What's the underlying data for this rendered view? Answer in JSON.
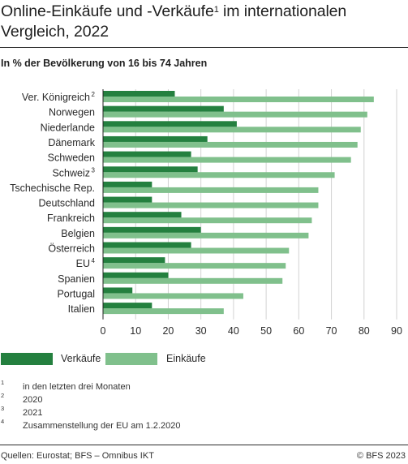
{
  "chart_data": {
    "type": "bar",
    "orientation": "horizontal",
    "title": "Online-Einkäufe und -Verkäufe",
    "title_sup": "1",
    "title_cont": " im internationalen Vergleich, 2022",
    "subtitle": "In % der Bevölkerung von 16 bis 74 Jahren",
    "categories": [
      {
        "name": "Ver. Königreich",
        "sup": "2"
      },
      {
        "name": "Norwegen",
        "sup": ""
      },
      {
        "name": "Niederlande",
        "sup": ""
      },
      {
        "name": "Dänemark",
        "sup": ""
      },
      {
        "name": "Schweden",
        "sup": ""
      },
      {
        "name": "Schweiz",
        "sup": "3"
      },
      {
        "name": "Tschechische Rep.",
        "sup": ""
      },
      {
        "name": "Deutschland",
        "sup": ""
      },
      {
        "name": "Frankreich",
        "sup": ""
      },
      {
        "name": "Belgien",
        "sup": ""
      },
      {
        "name": "Österreich",
        "sup": ""
      },
      {
        "name": "EU",
        "sup": "4"
      },
      {
        "name": "Spanien",
        "sup": ""
      },
      {
        "name": "Portugal",
        "sup": ""
      },
      {
        "name": "Italien",
        "sup": ""
      }
    ],
    "series": [
      {
        "name": "Verkäufe",
        "color": "#24803f",
        "values": [
          22,
          37,
          41,
          32,
          27,
          29,
          15,
          15,
          24,
          30,
          27,
          19,
          20,
          9,
          15
        ]
      },
      {
        "name": "Einkäufe",
        "color": "#80c08c",
        "values": [
          83,
          81,
          79,
          78,
          76,
          71,
          66,
          66,
          64,
          63,
          57,
          56,
          55,
          43,
          37
        ]
      }
    ],
    "xlim": [
      0,
      90
    ],
    "xticks": [
      "0",
      "10",
      "20",
      "30",
      "40",
      "50",
      "60",
      "70",
      "80",
      "90"
    ],
    "grid": true
  },
  "footnotes": [
    {
      "num": "1",
      "text": "in den letzten drei Monaten"
    },
    {
      "num": "2",
      "text": "2020"
    },
    {
      "num": "3",
      "text": "2021"
    },
    {
      "num": "4",
      "text": "Zusammenstellung der EU am 1.2.2020"
    }
  ],
  "source": "Quellen: Eurostat; BFS – Omnibus IKT",
  "copyright": "© BFS 2023"
}
